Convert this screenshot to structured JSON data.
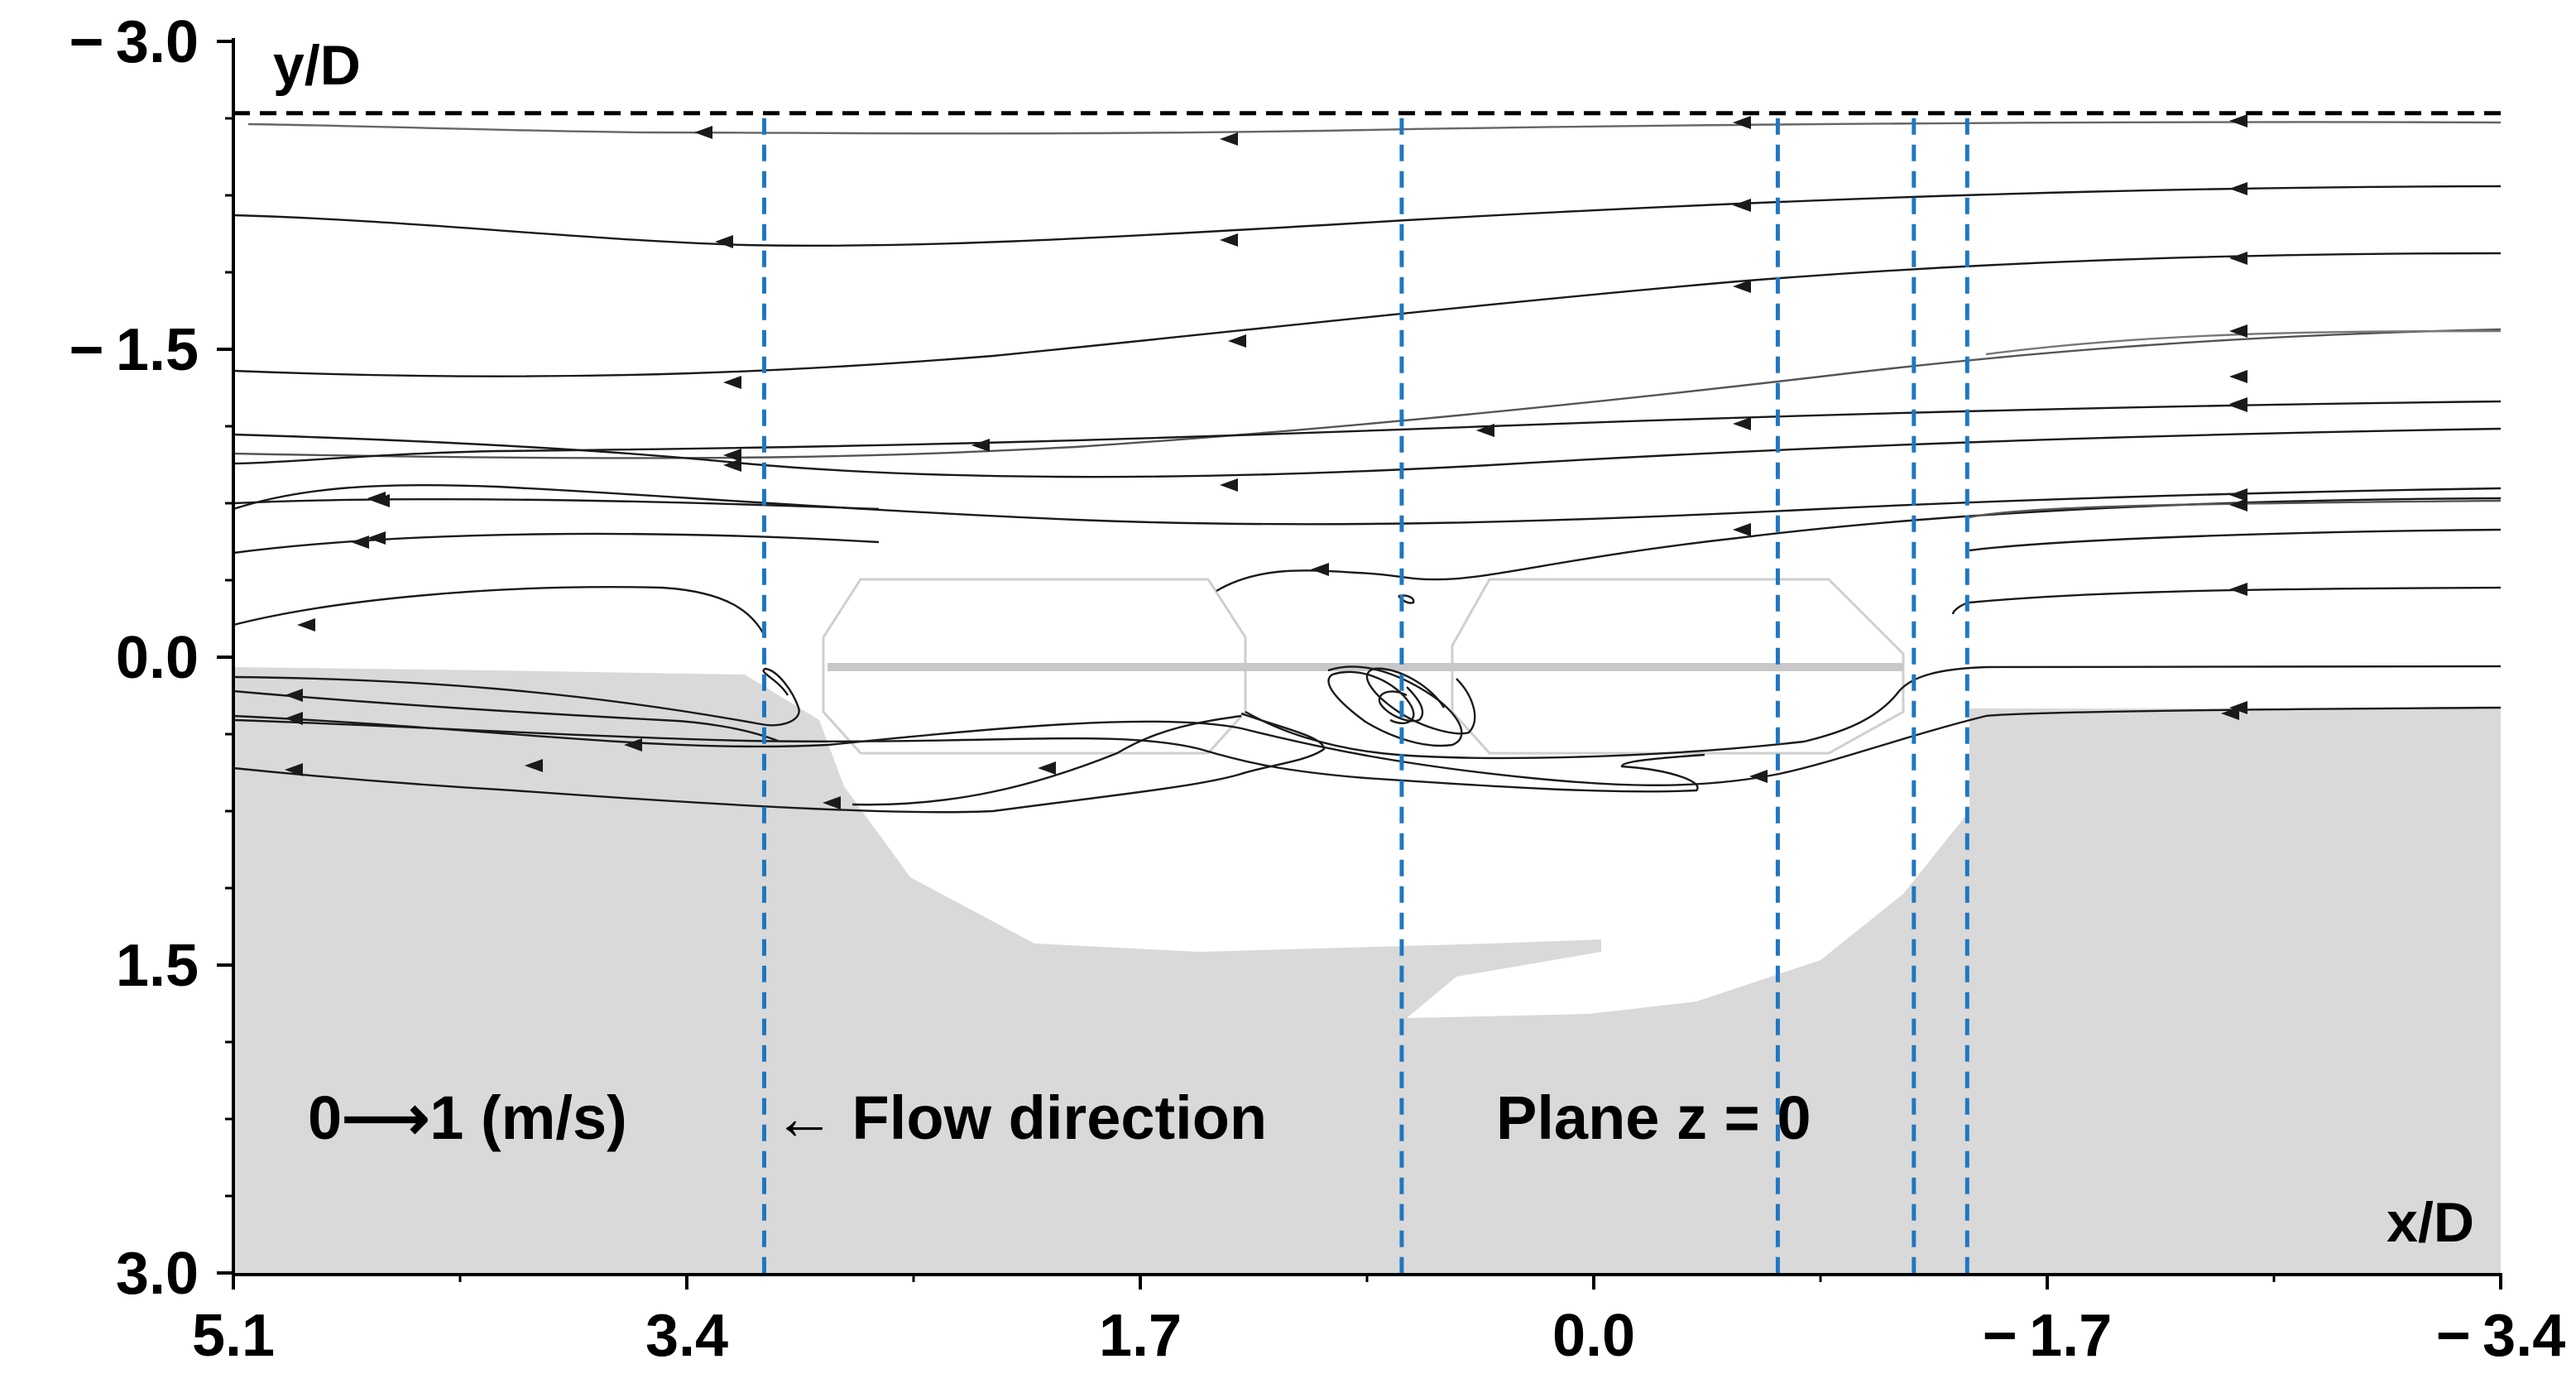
{
  "chart_data": {
    "type": "streamline",
    "xlabel": "x/D",
    "ylabel": "y/D",
    "xlim": [
      5.1,
      -3.4
    ],
    "ylim": [
      -3.0,
      3.0
    ],
    "x_ticks": [
      5.1,
      3.4,
      1.7,
      0.0,
      -1.7,
      -3.4
    ],
    "x_tick_labels": [
      "5.1",
      "3.4",
      "1.7",
      "0.0",
      "− 1.7",
      "− 3.4"
    ],
    "y_ticks": [
      -3.0,
      -1.5,
      0.0,
      1.5,
      3.0
    ],
    "y_tick_labels": [
      "− 3.0",
      "− 1.5",
      "0.0",
      "1.5",
      "3.0"
    ],
    "free_surface_y": -2.65,
    "measurement_lines_x": [
      3.11,
      0.72,
      -0.69,
      -1.2,
      -1.4
    ],
    "flow_direction_label": "← Flow direction",
    "plane_label": "Plane z = 0",
    "velocity_scale_label": "0⟶1 (m/s)",
    "colors": {
      "wake_region": "#d9d9d9",
      "measurement_lines": "#1f77c0",
      "streamlines": "#1a1a1a",
      "free_surface": "#000000"
    }
  }
}
